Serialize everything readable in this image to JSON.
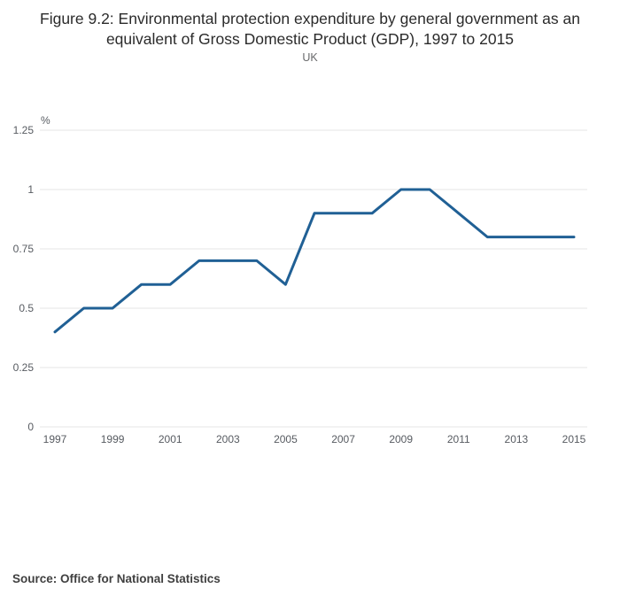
{
  "title": "Figure 9.2: Environmental protection expenditure by general government as an equivalent of Gross Domestic Product (GDP), 1997 to 2015",
  "subtitle": "UK",
  "source": "Source: Office for National Statistics",
  "chart_data": {
    "type": "line",
    "title": "Figure 9.2: Environmental protection expenditure by general government as an equivalent of Gross Domestic Product (GDP), 1997 to 2015",
    "subtitle": "UK",
    "x": [
      1997,
      1998,
      1999,
      2000,
      2001,
      2002,
      2003,
      2004,
      2005,
      2006,
      2007,
      2008,
      2009,
      2010,
      2011,
      2012,
      2013,
      2014,
      2015
    ],
    "values": [
      0.4,
      0.5,
      0.5,
      0.6,
      0.6,
      0.7,
      0.7,
      0.7,
      0.6,
      0.9,
      0.9,
      0.9,
      1.0,
      1.0,
      0.9,
      0.8,
      0.8,
      0.8,
      0.8
    ],
    "xlabel": "",
    "ylabel": "%",
    "ylim": [
      0,
      1.25
    ],
    "yticks": [
      0,
      0.25,
      0.5,
      0.75,
      1,
      1.25
    ],
    "ytick_labels": [
      "0",
      "0.25",
      "0.5",
      "0.75",
      "1",
      "1.25"
    ],
    "xticks": [
      1997,
      1999,
      2001,
      2003,
      2005,
      2007,
      2009,
      2011,
      2013,
      2015
    ],
    "grid": true,
    "legend": "none",
    "line_color": "#206095",
    "grid_color": "#e6e6e6"
  }
}
